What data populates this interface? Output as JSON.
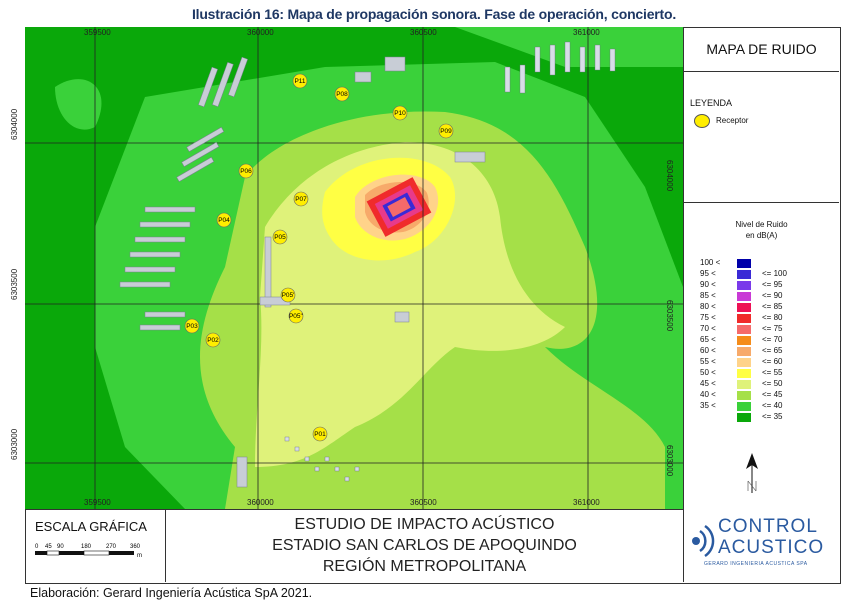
{
  "caption": "Ilustración 16: Mapa de propagación sonora. Fase de operación, concierto.",
  "panel_title": "MAPA DE RUIDO",
  "legend": {
    "heading": "LEYENDA",
    "receptor_label": "Receptor"
  },
  "scale": {
    "title_line1": "Nivel de Ruido",
    "title_line2": "en dB(A)",
    "rows": [
      {
        "lo": "100 <",
        "hi": "",
        "color": "#0000aa"
      },
      {
        "lo": "95 <",
        "hi": "<=  100",
        "color": "#3a2ad6"
      },
      {
        "lo": "90 <",
        "hi": "<=  95",
        "color": "#7a3aea"
      },
      {
        "lo": "85 <",
        "hi": "<=  90",
        "color": "#c93ad6"
      },
      {
        "lo": "80 <",
        "hi": "<=  85",
        "color": "#ee1155"
      },
      {
        "lo": "75 <",
        "hi": "<=  80",
        "color": "#f02b2b"
      },
      {
        "lo": "70 <",
        "hi": "<=  75",
        "color": "#f56a6a"
      },
      {
        "lo": "65 <",
        "hi": "<=  70",
        "color": "#f58c1a"
      },
      {
        "lo": "60 <",
        "hi": "<=  65",
        "color": "#f7aa6a"
      },
      {
        "lo": "55 <",
        "hi": "<=  60",
        "color": "#ffd38a"
      },
      {
        "lo": "50 <",
        "hi": "<=  55",
        "color": "#ffff44"
      },
      {
        "lo": "45 <",
        "hi": "<=  50",
        "color": "#dff27a"
      },
      {
        "lo": "40 <",
        "hi": "<=  45",
        "color": "#a5e048"
      },
      {
        "lo": "35 <",
        "hi": "<=  40",
        "color": "#3ad13a"
      },
      {
        "lo": "",
        "hi": "<=  35",
        "color": "#0aa80a"
      }
    ]
  },
  "axes": {
    "x_ticks": [
      "359500",
      "360000",
      "360500",
      "361000"
    ],
    "y_ticks": [
      "6304000",
      "6303500",
      "6303000"
    ]
  },
  "receptors": [
    "P11",
    "P08",
    "P10",
    "P09",
    "P06",
    "P07",
    "P04",
    "P05",
    "P05'",
    "P05''",
    "P03",
    "P02",
    "P01"
  ],
  "colors": {
    "zone35": "#0aa80a",
    "zone40": "#3ad13a",
    "zone45": "#a5e048",
    "zone50": "#dff27a",
    "zone55": "#ffff44",
    "zone60": "#ffd38a",
    "stadium": "#f02b2b",
    "receptor": "#ffee00",
    "building": "#c8cdd6"
  },
  "footer": {
    "scale_label": "ESCALA GRÁFICA",
    "scale_ticks": [
      "0",
      "45",
      "90",
      "180",
      "270",
      "360"
    ],
    "scale_unit": "m",
    "study_line1": "ESTUDIO DE IMPACTO ACÚSTICO",
    "study_line2": "ESTADIO SAN CARLOS DE APOQUINDO",
    "study_line3": "REGIÓN METROPOLITANA",
    "logo_line1": "CONTROL",
    "logo_line2": "ACUSTICO",
    "logo_line3": "GERARD INGENIERIA ACUSTICA SPA"
  },
  "credit": "Elaboración: Gerard Ingeniería Acústica SpA 2021."
}
